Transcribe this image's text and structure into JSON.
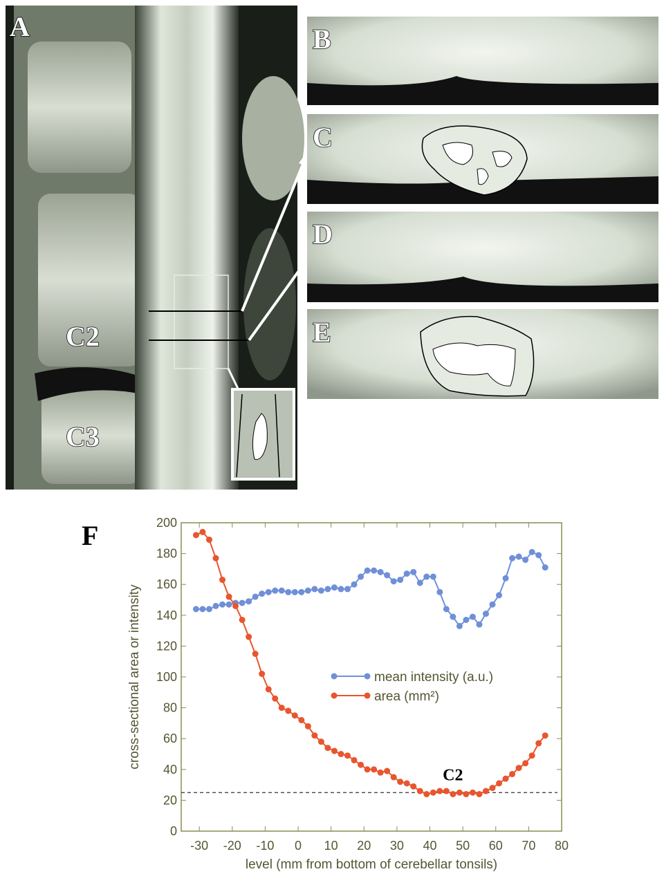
{
  "panel_labels": [
    "A",
    "B",
    "C",
    "D",
    "E",
    "F"
  ],
  "vertebra_labels": [
    "C2",
    "C3"
  ],
  "chart_data": {
    "type": "line",
    "xlabel": "level (mm from bottom of cerebellar tonsils)",
    "ylabel": "cross-sectional area or intensity",
    "x": [
      -31,
      -29,
      -27,
      -25,
      -23,
      -21,
      -19,
      -17,
      -15,
      -13,
      -11,
      -9,
      -7,
      -5,
      -3,
      -1,
      1,
      3,
      5,
      7,
      9,
      11,
      13,
      15,
      17,
      19,
      21,
      23,
      25,
      27,
      29,
      31,
      33,
      35,
      37,
      39,
      41,
      43,
      45,
      47,
      49,
      51,
      53,
      55,
      57,
      59,
      61,
      63,
      65,
      67,
      69,
      71,
      73,
      75
    ],
    "series": [
      {
        "name": "mean intensity (a.u.)",
        "color": "#6f8fd8",
        "values": [
          144,
          144,
          144,
          146,
          147,
          147,
          148,
          148,
          149,
          152,
          154,
          155,
          156,
          156,
          155,
          155,
          155,
          156,
          157,
          156,
          157,
          158,
          157,
          157,
          160,
          165,
          169,
          169,
          168,
          166,
          162,
          163,
          167,
          168,
          161,
          165,
          165,
          155,
          144,
          139,
          133,
          137,
          139,
          134,
          141,
          147,
          153,
          164,
          177,
          178,
          176,
          181,
          179,
          171
        ]
      },
      {
        "name": "area (mm²)",
        "color": "#e8552e",
        "values": [
          192,
          194,
          189,
          177,
          163,
          152,
          146,
          137,
          126,
          115,
          102,
          92,
          86,
          80,
          78,
          75,
          72,
          68,
          62,
          58,
          54,
          52,
          50,
          49,
          46,
          43,
          40,
          40,
          38,
          39,
          35,
          32,
          31,
          29,
          26,
          24,
          25,
          26,
          26,
          24,
          25,
          24,
          25,
          24,
          26,
          28,
          31,
          34,
          37,
          41,
          44,
          49,
          57,
          62
        ]
      }
    ],
    "xlim": [
      -35.5,
      80
    ],
    "ylim": [
      0,
      200
    ],
    "xticks": [
      -30,
      -20,
      -10,
      0,
      10,
      20,
      30,
      40,
      50,
      60,
      70,
      80
    ],
    "yticks": [
      0,
      20,
      40,
      60,
      80,
      100,
      120,
      140,
      160,
      180,
      200
    ],
    "reference_line": 25,
    "annotation": {
      "text": "C2",
      "x": 47,
      "y": 33
    },
    "legend_position": "center-right",
    "axis_color": "#8a8a55"
  }
}
